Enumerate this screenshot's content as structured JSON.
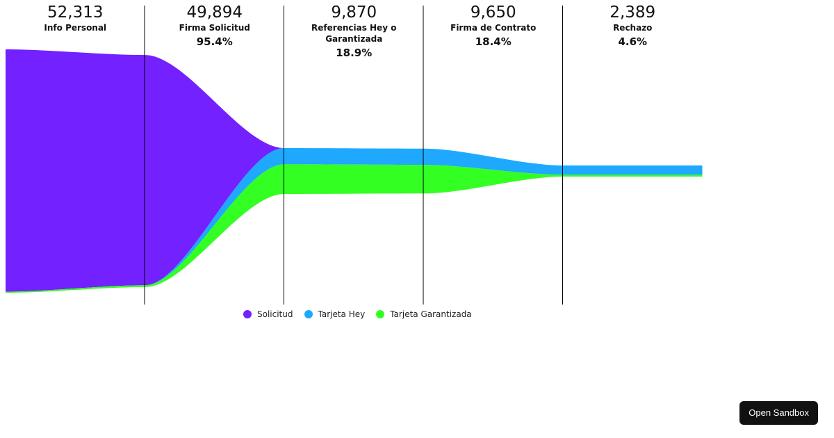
{
  "chart_data": {
    "type": "area",
    "stages": [
      {
        "count": "52,313",
        "name": "Info Personal",
        "percent": ""
      },
      {
        "count": "49,894",
        "name": "Firma Solicitud",
        "percent": "95.4%"
      },
      {
        "count": "9,870",
        "name": "Referencias Hey o Garantizada",
        "percent": "18.9%"
      },
      {
        "count": "9,650",
        "name": "Firma de Contrato",
        "percent": "18.4%"
      },
      {
        "count": "2,389",
        "name": "Rechazo",
        "percent": "4.6%"
      }
    ],
    "series": [
      {
        "name": "Solicitud",
        "color": "#7321ff",
        "values": [
          52100,
          49500,
          0,
          0,
          0
        ]
      },
      {
        "name": "Tarjeta Hey",
        "color": "#1ea9ff",
        "values": [
          0,
          0,
          3500,
          3500,
          2000
        ]
      },
      {
        "name": "Tarjeta Garantizada",
        "color": "#33ff22",
        "values": [
          213,
          394,
          6370,
          6150,
          389
        ]
      }
    ],
    "ylim": [
      0,
      52313
    ],
    "legend_position": "bottom"
  },
  "sandbox": {
    "label": "Open Sandbox"
  }
}
